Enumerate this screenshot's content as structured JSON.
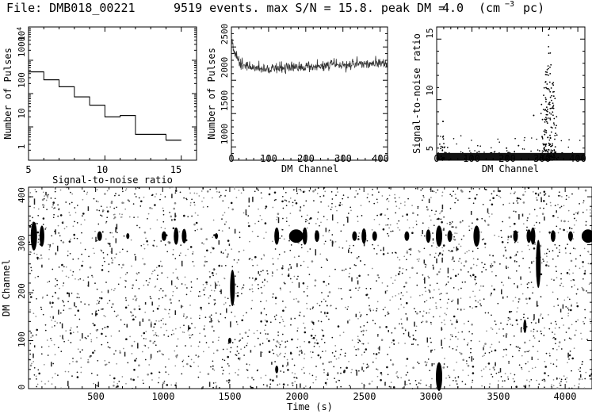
{
  "header": {
    "file_label": "File: DMB018_00221",
    "summary_label": "9519 events. max S/N = 15.8. peak DM =",
    "peak_dm_value": "4.0",
    "units_prefix": "(cm",
    "units_exponent": "−3",
    "units_suffix": " pc)"
  },
  "chart_data": [
    {
      "id": "snr-histogram",
      "type": "bar",
      "style": "step",
      "xlabel": "Signal-to-noise ratio",
      "ylabel": "Number of Pulses",
      "xlim": [
        5,
        16
      ],
      "ylim": [
        1,
        10000
      ],
      "yscale": "log",
      "x_ticks": [
        "5",
        "10",
        "15"
      ],
      "y_ticks": [
        "1",
        "10",
        "100",
        "1000"
      ],
      "y_top_tick": {
        "base": "10",
        "exponent": "4"
      },
      "bins": [
        {
          "x0": 5,
          "x1": 6,
          "value": 450
        },
        {
          "x0": 6,
          "x1": 7,
          "value": 260
        },
        {
          "x0": 7,
          "x1": 8,
          "value": 160
        },
        {
          "x0": 8,
          "x1": 9,
          "value": 80
        },
        {
          "x0": 9,
          "x1": 10,
          "value": 45
        },
        {
          "x0": 10,
          "x1": 11,
          "value": 20
        },
        {
          "x0": 11,
          "x1": 12,
          "value": 22
        },
        {
          "x0": 12,
          "x1": 13,
          "value": 6
        },
        {
          "x0": 13,
          "x1": 14,
          "value": 6
        },
        {
          "x0": 14,
          "x1": 15,
          "value": 4
        }
      ]
    },
    {
      "id": "dm-pulse-count",
      "type": "line",
      "xlabel": "DM Channel",
      "ylabel": "Number of Pulses",
      "xlim": [
        0,
        420
      ],
      "ylim": [
        800,
        2800
      ],
      "x_ticks": [
        "0",
        "100",
        "200",
        "300",
        "400"
      ],
      "y_ticks": [
        "1000",
        "1500",
        "2000",
        "2500"
      ],
      "x": [
        0,
        5,
        10,
        15,
        20,
        30,
        40,
        50,
        60,
        70,
        80,
        90,
        100,
        110,
        120,
        130,
        140,
        150,
        160,
        170,
        180,
        190,
        200,
        210,
        220,
        230,
        240,
        250,
        260,
        270,
        280,
        290,
        300,
        310,
        320,
        330,
        340,
        350,
        360,
        370,
        380,
        390,
        400,
        410,
        420
      ],
      "y": [
        2600,
        2500,
        2400,
        2330,
        2300,
        2250,
        2220,
        2200,
        2190,
        2180,
        2175,
        2170,
        2170,
        2185,
        2180,
        2190,
        2185,
        2200,
        2180,
        2190,
        2200,
        2195,
        2220,
        2210,
        2200,
        2220,
        2230,
        2215,
        2220,
        2240,
        2230,
        2230,
        2240,
        2230,
        2245,
        2250,
        2240,
        2245,
        2250,
        2240,
        2260,
        2255,
        2245,
        2260,
        2250
      ]
    },
    {
      "id": "snr-vs-dm",
      "type": "scatter",
      "xlabel": "DM Channel",
      "ylabel": "Signal-to-noise ratio",
      "xlim": [
        0,
        420
      ],
      "ylim": [
        5,
        16
      ],
      "x_ticks": [
        "0",
        "100",
        "200",
        "300",
        "400"
      ],
      "y_ticks": [
        "5",
        "10",
        "15"
      ],
      "baseline": {
        "x0": 0,
        "x1": 420,
        "y0": 5,
        "y1": 5.6
      },
      "clusters": [
        {
          "x_center": 318,
          "x_sigma": 10,
          "y_min": 5,
          "y_max": 15.8,
          "count": 200
        },
        {
          "x_center": 18,
          "x_sigma": 6,
          "y_min": 5,
          "y_max": 7.5,
          "count": 26
        }
      ],
      "points": [
        {
          "x": 18,
          "y": 8.2
        },
        {
          "x": 275,
          "y": 8.7
        },
        {
          "x": 232,
          "y": 6.2
        },
        {
          "x": 198,
          "y": 6.0
        },
        {
          "x": 120,
          "y": 5.7
        },
        {
          "x": 318,
          "y": 15.8
        }
      ]
    },
    {
      "id": "dm-vs-time",
      "type": "scatter",
      "xlabel": "Time (s)",
      "ylabel": "DM Channel",
      "xlim": [
        0,
        4200
      ],
      "ylim": [
        0,
        420
      ],
      "x_ticks": [
        "500",
        "1000",
        "1500",
        "2000",
        "2500",
        "3000",
        "3500",
        "4000"
      ],
      "y_ticks": [
        "0",
        "100",
        "200",
        "300",
        "400"
      ],
      "background_point_count": 2600,
      "pulses": [
        {
          "t": 40,
          "dm": 318,
          "half_height": 30,
          "width": 4
        },
        {
          "t": 100,
          "dm": 318,
          "half_height": 22,
          "width": 3
        },
        {
          "t": 530,
          "dm": 318,
          "half_height": 10,
          "width": 3
        },
        {
          "t": 740,
          "dm": 318,
          "half_height": 6,
          "width": 2
        },
        {
          "t": 1010,
          "dm": 318,
          "half_height": 10,
          "width": 3
        },
        {
          "t": 1100,
          "dm": 318,
          "half_height": 18,
          "width": 3
        },
        {
          "t": 1160,
          "dm": 318,
          "half_height": 15,
          "width": 3
        },
        {
          "t": 1400,
          "dm": 318,
          "half_height": 6,
          "width": 2
        },
        {
          "t": 1520,
          "dm": 210,
          "half_height": 38,
          "width": 3
        },
        {
          "t": 1850,
          "dm": 318,
          "half_height": 18,
          "width": 3
        },
        {
          "t": 1995,
          "dm": 318,
          "half_height": 14,
          "width": 9
        },
        {
          "t": 2060,
          "dm": 318,
          "half_height": 18,
          "width": 3
        },
        {
          "t": 2150,
          "dm": 318,
          "half_height": 12,
          "width": 3
        },
        {
          "t": 2430,
          "dm": 318,
          "half_height": 10,
          "width": 3
        },
        {
          "t": 2500,
          "dm": 318,
          "half_height": 16,
          "width": 3
        },
        {
          "t": 2580,
          "dm": 318,
          "half_height": 10,
          "width": 3
        },
        {
          "t": 2820,
          "dm": 318,
          "half_height": 10,
          "width": 3
        },
        {
          "t": 2980,
          "dm": 318,
          "half_height": 14,
          "width": 3
        },
        {
          "t": 3060,
          "dm": 318,
          "half_height": 22,
          "width": 4
        },
        {
          "t": 3060,
          "dm": 25,
          "half_height": 30,
          "width": 4
        },
        {
          "t": 3140,
          "dm": 318,
          "half_height": 12,
          "width": 3
        },
        {
          "t": 3340,
          "dm": 318,
          "half_height": 22,
          "width": 4
        },
        {
          "t": 3630,
          "dm": 318,
          "half_height": 12,
          "width": 3
        },
        {
          "t": 3730,
          "dm": 318,
          "half_height": 14,
          "width": 3
        },
        {
          "t": 3760,
          "dm": 318,
          "half_height": 18,
          "width": 3
        },
        {
          "t": 3800,
          "dm": 260,
          "half_height": 50,
          "width": 3
        },
        {
          "t": 3910,
          "dm": 318,
          "half_height": 12,
          "width": 3
        },
        {
          "t": 4040,
          "dm": 318,
          "half_height": 10,
          "width": 3
        },
        {
          "t": 4170,
          "dm": 318,
          "half_height": 14,
          "width": 8
        },
        {
          "t": 3700,
          "dm": 130,
          "half_height": 14,
          "width": 2
        },
        {
          "t": 1850,
          "dm": 40,
          "half_height": 8,
          "width": 2
        },
        {
          "t": 1500,
          "dm": 100,
          "half_height": 6,
          "width": 2
        }
      ]
    }
  ]
}
